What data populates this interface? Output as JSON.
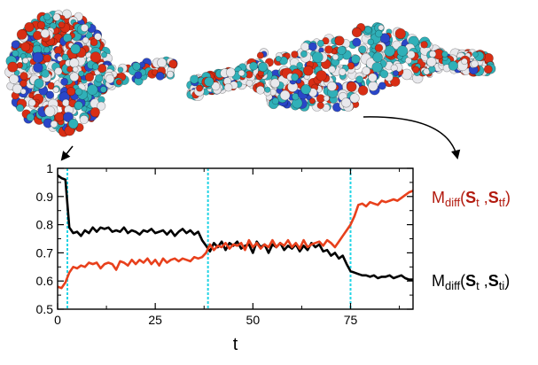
{
  "chart_data": {
    "type": "line",
    "xlabel": "t",
    "ylabel": "",
    "xlim": [
      0,
      91
    ],
    "ylim": [
      0.5,
      1.0
    ],
    "x_ticks": [
      0,
      25,
      50,
      75
    ],
    "y_ticks": [
      0.5,
      0.6,
      0.7,
      0.8,
      0.9,
      1.0
    ],
    "x_tick_labels": [
      "0",
      "25",
      "50",
      "75"
    ],
    "y_tick_labels": [
      "0.5",
      "0.6",
      "0.7",
      "0.8",
      "0.9",
      "1"
    ],
    "vertical_lines": [
      2.5,
      38.5,
      75
    ],
    "grid": false,
    "legend_placement": "right",
    "series": [
      {
        "name": "Mdiff(St ,Sti)",
        "label_parts": [
          "M",
          "diff",
          "(",
          "S",
          "t",
          " ,",
          "S",
          "ti",
          ")"
        ],
        "color": "#000000",
        "x": [
          0,
          1,
          2,
          3,
          4,
          5,
          6,
          7,
          8,
          9,
          10,
          11,
          12,
          13,
          14,
          15,
          16,
          17,
          18,
          19,
          20,
          21,
          22,
          23,
          24,
          25,
          26,
          27,
          28,
          29,
          30,
          31,
          32,
          33,
          34,
          35,
          36,
          37,
          38,
          39,
          40,
          41,
          42,
          43,
          44,
          45,
          46,
          47,
          48,
          49,
          50,
          51,
          52,
          53,
          54,
          55,
          56,
          57,
          58,
          59,
          60,
          61,
          62,
          63,
          64,
          65,
          66,
          67,
          68,
          69,
          70,
          71,
          72,
          73,
          74,
          75,
          76,
          77,
          78,
          79,
          80,
          81,
          82,
          83,
          84,
          85,
          86,
          87,
          88,
          89,
          90,
          91
        ],
        "values": [
          0.975,
          0.965,
          0.96,
          0.79,
          0.77,
          0.775,
          0.76,
          0.78,
          0.77,
          0.79,
          0.775,
          0.79,
          0.785,
          0.79,
          0.775,
          0.78,
          0.775,
          0.79,
          0.77,
          0.78,
          0.775,
          0.765,
          0.78,
          0.775,
          0.785,
          0.77,
          0.775,
          0.78,
          0.765,
          0.78,
          0.76,
          0.775,
          0.785,
          0.77,
          0.78,
          0.765,
          0.775,
          0.745,
          0.725,
          0.705,
          0.735,
          0.72,
          0.74,
          0.71,
          0.735,
          0.725,
          0.74,
          0.715,
          0.725,
          0.73,
          0.7,
          0.74,
          0.72,
          0.73,
          0.7,
          0.73,
          0.72,
          0.735,
          0.71,
          0.725,
          0.715,
          0.73,
          0.705,
          0.725,
          0.71,
          0.735,
          0.72,
          0.73,
          0.705,
          0.71,
          0.69,
          0.7,
          0.68,
          0.69,
          0.66,
          0.635,
          0.63,
          0.625,
          0.62,
          0.62,
          0.615,
          0.62,
          0.61,
          0.615,
          0.615,
          0.62,
          0.61,
          0.615,
          0.62,
          0.61,
          0.605,
          0.605
        ]
      },
      {
        "name": "Mdiff(St ,Stf)",
        "label_parts": [
          "M",
          "diff",
          "(",
          "S",
          "t",
          " ,",
          "S",
          "tf",
          ")"
        ],
        "color": "#e8401c",
        "x": [
          0,
          1,
          2,
          3,
          4,
          5,
          6,
          7,
          8,
          9,
          10,
          11,
          12,
          13,
          14,
          15,
          16,
          17,
          18,
          19,
          20,
          21,
          22,
          23,
          24,
          25,
          26,
          27,
          28,
          29,
          30,
          31,
          32,
          33,
          34,
          35,
          36,
          37,
          38,
          39,
          40,
          41,
          42,
          43,
          44,
          45,
          46,
          47,
          48,
          49,
          50,
          51,
          52,
          53,
          54,
          55,
          56,
          57,
          58,
          59,
          60,
          61,
          62,
          63,
          64,
          65,
          66,
          67,
          68,
          69,
          70,
          71,
          72,
          73,
          74,
          75,
          76,
          77,
          78,
          79,
          80,
          81,
          82,
          83,
          84,
          85,
          86,
          87,
          88,
          89,
          90,
          91
        ],
        "values": [
          0.58,
          0.575,
          0.595,
          0.63,
          0.65,
          0.645,
          0.655,
          0.65,
          0.665,
          0.66,
          0.665,
          0.645,
          0.66,
          0.665,
          0.66,
          0.64,
          0.67,
          0.665,
          0.655,
          0.675,
          0.66,
          0.675,
          0.665,
          0.68,
          0.66,
          0.675,
          0.655,
          0.68,
          0.665,
          0.675,
          0.68,
          0.67,
          0.68,
          0.675,
          0.67,
          0.685,
          0.68,
          0.685,
          0.7,
          0.73,
          0.71,
          0.725,
          0.72,
          0.735,
          0.715,
          0.73,
          0.725,
          0.735,
          0.71,
          0.745,
          0.72,
          0.735,
          0.715,
          0.73,
          0.72,
          0.745,
          0.72,
          0.735,
          0.725,
          0.745,
          0.72,
          0.735,
          0.715,
          0.745,
          0.72,
          0.73,
          0.735,
          0.74,
          0.725,
          0.745,
          0.735,
          0.72,
          0.74,
          0.76,
          0.78,
          0.8,
          0.83,
          0.87,
          0.875,
          0.865,
          0.88,
          0.875,
          0.87,
          0.885,
          0.88,
          0.885,
          0.89,
          0.885,
          0.895,
          0.905,
          0.915,
          0.92
        ]
      }
    ]
  },
  "illustration": {
    "left_structure": "compact-protein-structure",
    "right_structure": "extended-protein-structure",
    "atom_colors": {
      "carbon": "#30b0b8",
      "oxygen": "#d82e14",
      "nitrogen": "#2a46c8",
      "hydrogen": "#e8e8ec"
    },
    "vertical_line_color": "#22d4e6"
  }
}
